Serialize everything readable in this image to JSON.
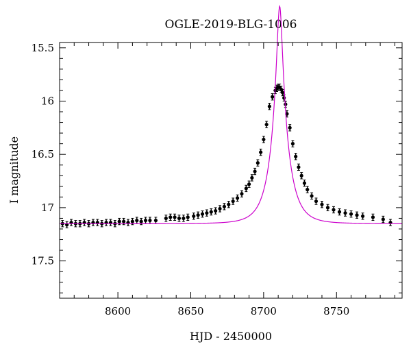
{
  "chart_data": {
    "type": "scatter",
    "title": "OGLE-2019-BLG-1006",
    "xlabel": "HJD - 2450000",
    "ylabel": "I magnitude",
    "xlim": [
      8560,
      8795
    ],
    "ylim": [
      17.85,
      15.45
    ],
    "y_inverted": true,
    "grid": false,
    "xticks": [
      8600,
      8650,
      8700,
      8750
    ],
    "yticks": [
      15.5,
      16,
      16.5,
      17,
      17.5
    ],
    "colors": {
      "data": "#000000",
      "model": "#cc00cc"
    },
    "series": [
      {
        "kind": "points_with_errorbars",
        "error": 0.03,
        "x": [
          8562,
          8565,
          8568,
          8571,
          8574,
          8577,
          8580,
          8583,
          8586,
          8589,
          8592,
          8595,
          8598,
          8601,
          8604,
          8607,
          8610,
          8613,
          8616,
          8619,
          8622,
          8626,
          8633,
          8636,
          8639,
          8642,
          8645,
          8648,
          8652,
          8655,
          8658,
          8661,
          8664,
          8667,
          8670,
          8673,
          8676,
          8679,
          8682,
          8685,
          8688,
          8690,
          8692,
          8694,
          8696,
          8698,
          8700,
          8702,
          8704,
          8706,
          8708,
          8709,
          8710,
          8711,
          8712,
          8713,
          8714,
          8715,
          8716,
          8718,
          8720,
          8722,
          8724,
          8726,
          8728,
          8730,
          8733,
          8736,
          8740,
          8744,
          8748,
          8752,
          8756,
          8760,
          8764,
          8768,
          8775,
          8782,
          8787
        ],
        "y": [
          17.15,
          17.16,
          17.14,
          17.15,
          17.15,
          17.14,
          17.15,
          17.14,
          17.14,
          17.15,
          17.14,
          17.14,
          17.15,
          17.13,
          17.13,
          17.14,
          17.13,
          17.12,
          17.13,
          17.12,
          17.12,
          17.12,
          17.1,
          17.09,
          17.09,
          17.1,
          17.1,
          17.09,
          17.08,
          17.07,
          17.06,
          17.05,
          17.04,
          17.03,
          17.01,
          16.99,
          16.97,
          16.94,
          16.91,
          16.87,
          16.82,
          16.78,
          16.72,
          16.66,
          16.58,
          16.48,
          16.36,
          16.22,
          16.05,
          15.96,
          15.9,
          15.88,
          15.87,
          15.87,
          15.89,
          15.92,
          15.97,
          16.03,
          16.12,
          16.25,
          16.4,
          16.52,
          16.62,
          16.7,
          16.77,
          16.83,
          16.89,
          16.94,
          16.97,
          17.0,
          17.02,
          17.04,
          17.05,
          17.06,
          17.07,
          17.08,
          17.09,
          17.11,
          17.14
        ]
      },
      {
        "kind": "model_curve",
        "t0": 8711,
        "tE": 11.0,
        "u0": 0.154,
        "baseline": 17.15
      }
    ]
  }
}
